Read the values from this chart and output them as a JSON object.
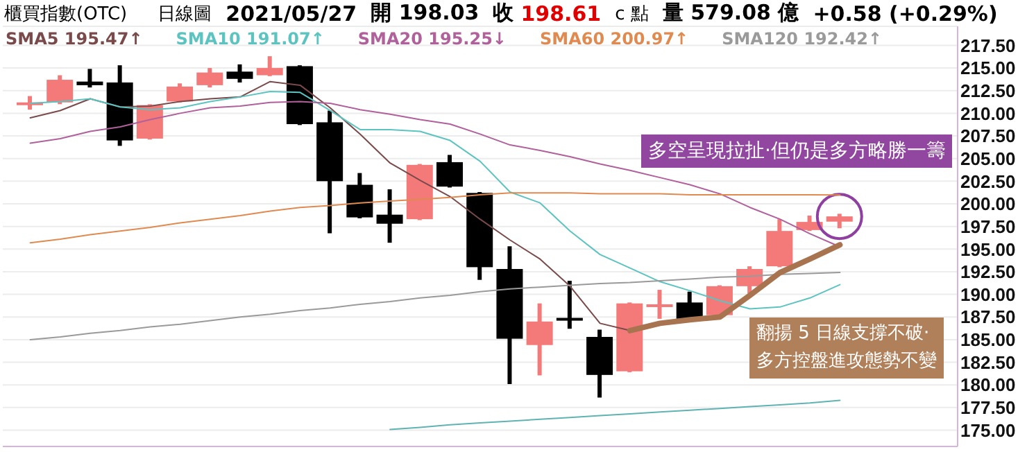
{
  "chart_data": {
    "type": "candlestick",
    "title": "櫃買指數(OTC)",
    "subtitle": "日線圖",
    "annotations": [
      "2021/05/27",
      "開 198.03",
      "收",
      "198.61",
      "c 點",
      "量 579.08 億",
      "+0.58 (+0.29%)",
      "多空呈現拉扯·但仍是多方略勝一籌",
      "翻揚 5 日線支撐不破·\n多方控盤進攻態勢不變"
    ],
    "categories": [
      null,
      null,
      null,
      null,
      null,
      null,
      null,
      null,
      null,
      null,
      null,
      null,
      null,
      null,
      null,
      null,
      null,
      null,
      null,
      null,
      null,
      null,
      null,
      null,
      null,
      null,
      null,
      null
    ],
    "ohlc": [
      [
        211.1,
        211.9,
        210.4,
        211.2
      ],
      [
        211.2,
        214.2,
        211.0,
        213.7
      ],
      [
        213.5,
        214.9,
        212.85,
        213.1
      ],
      [
        213.4,
        215.3,
        206.4,
        207.0
      ],
      [
        207.2,
        211.0,
        207.1,
        210.9
      ],
      [
        211.3,
        213.3,
        211.2,
        212.95
      ],
      [
        213.1,
        215.0,
        212.85,
        214.5
      ],
      [
        214.6,
        215.4,
        213.4,
        213.8
      ],
      [
        214.2,
        216.3,
        214.1,
        215.0
      ],
      [
        215.2,
        215.3,
        208.7,
        208.8
      ],
      [
        209.0,
        210.3,
        196.75,
        202.5
      ],
      [
        202.1,
        203.4,
        198.4,
        198.5
      ],
      [
        198.8,
        201.6,
        195.7,
        197.8
      ],
      [
        198.3,
        204.4,
        198.2,
        204.3
      ],
      [
        204.6,
        205.4,
        201.8,
        201.9
      ],
      [
        201.2,
        201.3,
        191.6,
        193.0
      ],
      [
        192.8,
        195.3,
        180.1,
        185.1
      ],
      [
        184.4,
        189.0,
        181.05,
        187.0
      ],
      [
        187.4,
        191.5,
        186.2,
        187.2
      ],
      [
        185.3,
        186.1,
        178.6,
        181.1
      ],
      [
        181.5,
        189.1,
        181.4,
        189.0
      ],
      [
        188.8,
        190.5,
        187.3,
        188.9
      ],
      [
        189.1,
        190.3,
        187.2,
        187.3
      ],
      [
        187.7,
        191.0,
        187.6,
        190.9
      ],
      [
        190.9,
        193.1,
        190.1,
        192.8
      ],
      [
        193.1,
        198.3,
        193.0,
        197.0
      ],
      [
        197.1,
        198.7,
        197.0,
        198.0
      ],
      [
        198.03,
        198.9,
        197.3,
        198.61
      ]
    ],
    "colors": [
      "#f47a7a",
      "#f47a7a",
      "#000000",
      "#000000",
      "#f47a7a",
      "#f47a7a",
      "#f47a7a",
      "#000000",
      "#f47a7a",
      "#000000",
      "#000000",
      "#000000",
      "#000000",
      "#f47a7a",
      "#000000",
      "#000000",
      "#000000",
      "#f47a7a",
      "#000000",
      "#000000",
      "#f47a7a",
      "#f47a7a",
      "#000000",
      "#f47a7a",
      "#f47a7a",
      "#f47a7a",
      "#f47a7a",
      "#f47a7a"
    ],
    "series": [
      {
        "type": "line",
        "name": "SMA5 195.47↑",
        "color": "#7a4a4a",
        "values": [
          209.5,
          210.3,
          211.6,
          210.7,
          210.8,
          211.3,
          211.6,
          211.8,
          213.5,
          213.1,
          210.6,
          207.7,
          204.5,
          202.6,
          200.8,
          198.3,
          196.0,
          193.9,
          190.9,
          186.8,
          186.0,
          186.8,
          187.2,
          187.5,
          189.9,
          192.4,
          193.9,
          195.47
        ]
      },
      {
        "type": "line",
        "name": "SMA10 191.07↑",
        "color": "#5cc4c0",
        "values": [
          211.1,
          211.3,
          211.6,
          210.7,
          210.4,
          210.6,
          211.3,
          211.8,
          212.4,
          212.3,
          210.3,
          208.2,
          208.2,
          208.0,
          207.0,
          204.7,
          201.3,
          200.1,
          197.0,
          194.4,
          192.9,
          191.4,
          190.4,
          189.3,
          188.4,
          188.6,
          189.6,
          191.07
        ]
      },
      {
        "type": "line",
        "name": "SMA20 195.25↓",
        "color": "#b0609a",
        "values": [
          206.7,
          207.2,
          208.0,
          208.5,
          209.3,
          210.0,
          210.6,
          210.8,
          211.2,
          211.3,
          211.1,
          210.4,
          209.9,
          209.3,
          208.8,
          207.7,
          206.5,
          205.9,
          205.2,
          204.4,
          203.7,
          202.9,
          202.1,
          201.1,
          199.6,
          198.3,
          196.7,
          195.25
        ]
      },
      {
        "type": "line",
        "name": "SMA60 200.97↑",
        "color": "#e08a50",
        "values": [
          195.7,
          196.1,
          196.6,
          197.0,
          197.4,
          197.9,
          198.3,
          198.7,
          199.2,
          199.6,
          199.8,
          200.1,
          200.3,
          200.5,
          200.7,
          201.0,
          201.2,
          201.2,
          201.2,
          201.1,
          201.1,
          201.1,
          201.0,
          201.0,
          201.0,
          201.0,
          201.0,
          200.97
        ]
      },
      {
        "type": "line",
        "name": "SMA120 192.42↑",
        "color": "#9a9a9a",
        "values": [
          185.0,
          185.3,
          185.7,
          186.0,
          186.4,
          186.7,
          187.1,
          187.5,
          187.8,
          188.2,
          188.5,
          188.9,
          189.2,
          189.6,
          189.9,
          190.3,
          190.6,
          190.8,
          191.0,
          191.2,
          191.3,
          191.5,
          191.7,
          191.9,
          192.0,
          192.2,
          192.3,
          192.42
        ]
      },
      {
        "type": "line",
        "color": "#5fb3b3",
        "values": [
          null,
          null,
          null,
          null,
          null,
          null,
          null,
          null,
          null,
          null,
          null,
          null,
          175.07,
          175.3,
          175.6,
          175.8,
          176.0,
          176.2,
          176.4,
          176.6,
          176.8,
          177.0,
          177.2,
          177.4,
          177.6,
          177.8,
          178.0,
          178.3
        ]
      },
      {
        "type": "line",
        "color": "#a8744f",
        "values": [
          null,
          null,
          null,
          null,
          null,
          null,
          null,
          null,
          null,
          null,
          null,
          null,
          null,
          null,
          null,
          null,
          null,
          null,
          null,
          null,
          186.0,
          186.8,
          187.2,
          187.5,
          189.9,
          192.4,
          193.9,
          195.47
        ]
      }
    ],
    "ylim": [
      173.2,
      219.6
    ],
    "yticks": [
      {
        "value": 175,
        "label": "175.00"
      },
      {
        "value": 177.5,
        "label": "177.50"
      },
      {
        "value": 180,
        "label": "180.00"
      },
      {
        "value": 182.5,
        "label": "182.50"
      },
      {
        "value": 185,
        "label": "185.00"
      },
      {
        "value": 187.5,
        "label": "187.50"
      },
      {
        "value": 190,
        "label": "190.00"
      },
      {
        "value": 192.5,
        "label": "192.50"
      },
      {
        "value": 195,
        "label": "195.00"
      },
      {
        "value": 197.5,
        "label": "197.50"
      },
      {
        "value": 200,
        "label": "200.00"
      },
      {
        "value": 202.5,
        "label": "202.50"
      },
      {
        "value": 205,
        "label": "205.00"
      },
      {
        "value": 207.5,
        "label": "207.50"
      },
      {
        "value": 210,
        "label": "210.00"
      },
      {
        "value": 212.5,
        "label": "212.50"
      },
      {
        "value": 215,
        "label": "215.00"
      },
      {
        "value": 217.5,
        "label": "217.50"
      }
    ],
    "grid": "y",
    "legend": "top left",
    "tick_labels": "y",
    "marker": "none",
    "line_style": "solid"
  }
}
